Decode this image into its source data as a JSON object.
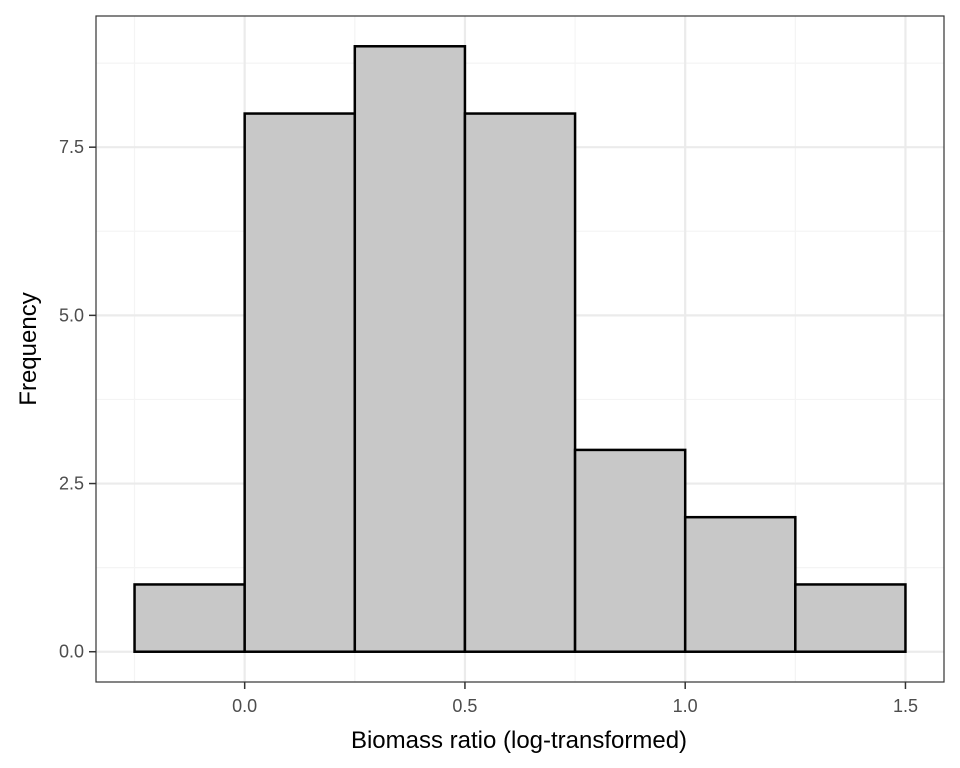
{
  "chart_data": {
    "type": "bar",
    "subtype": "histogram",
    "xlabel": "Biomass ratio (log-transformed)",
    "ylabel": "Frequency",
    "bins": [
      {
        "start": -0.25,
        "end": 0.0,
        "count": 1
      },
      {
        "start": 0.0,
        "end": 0.25,
        "count": 8
      },
      {
        "start": 0.25,
        "end": 0.5,
        "count": 9
      },
      {
        "start": 0.5,
        "end": 0.75,
        "count": 8
      },
      {
        "start": 0.75,
        "end": 1.0,
        "count": 3
      },
      {
        "start": 1.0,
        "end": 1.25,
        "count": 2
      },
      {
        "start": 1.25,
        "end": 1.5,
        "count": 1
      }
    ],
    "xlim": [
      -0.3375,
      1.5875
    ],
    "ylim": [
      -0.45,
      9.45
    ],
    "x_ticks": [
      {
        "value": 0.0,
        "label": "0.0"
      },
      {
        "value": 0.5,
        "label": "0.5"
      },
      {
        "value": 1.0,
        "label": "1.0"
      },
      {
        "value": 1.5,
        "label": "1.5"
      }
    ],
    "y_ticks": [
      {
        "value": 0.0,
        "label": "0.0"
      },
      {
        "value": 2.5,
        "label": "2.5"
      },
      {
        "value": 5.0,
        "label": "5.0"
      },
      {
        "value": 7.5,
        "label": "7.5"
      }
    ],
    "x_minor_breaks": [
      -0.25,
      0.25,
      0.75,
      1.25
    ],
    "y_minor_breaks": [
      1.25,
      3.75,
      6.25,
      8.75
    ],
    "grid": true,
    "legend": "none",
    "colors": {
      "bar_fill": "#c8c8c8",
      "bar_outline": "#000000",
      "panel_border": "#333333",
      "grid_major": "#ebebeb",
      "grid_minor": "#f4f4f4"
    }
  }
}
